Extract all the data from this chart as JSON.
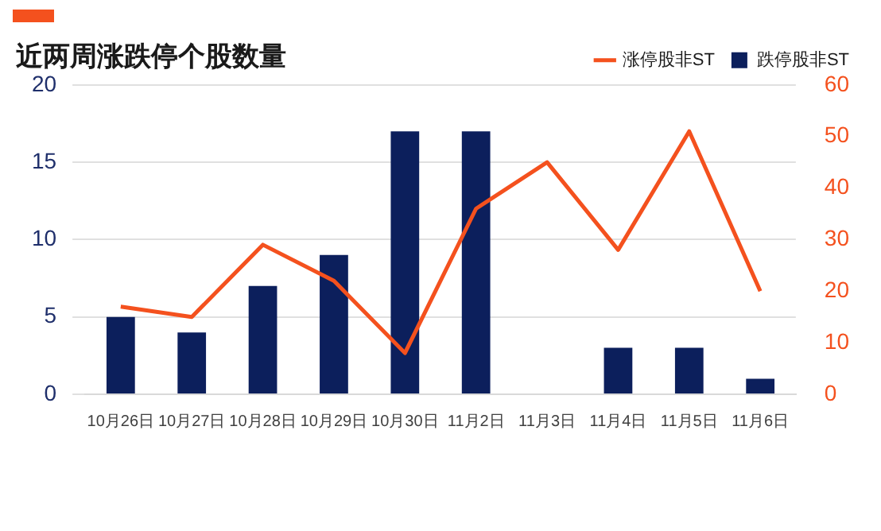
{
  "chart_data": {
    "type": "bar",
    "title": "近两周涨跌停个股数量",
    "categories": [
      "10月26日",
      "10月27日",
      "10月28日",
      "10月29日",
      "10月30日",
      "11月2日",
      "11月3日",
      "11月4日",
      "11月5日",
      "11月6日"
    ],
    "series": [
      {
        "name": "跌停股非ST",
        "color": "#0c1f5c",
        "values": [
          5,
          4,
          7,
          9,
          17,
          17,
          0,
          3,
          3,
          1
        ]
      },
      {
        "name": "涨停股非ST",
        "type": "line",
        "axis": "y2",
        "color": "#f4511e",
        "values": [
          17,
          15,
          29,
          22,
          8,
          36,
          45,
          28,
          51,
          20
        ]
      }
    ],
    "ylim": [
      0,
      20
    ],
    "yticks": [
      0,
      5,
      10,
      15,
      20
    ],
    "y2lim": [
      0,
      60
    ],
    "y2ticks": [
      0,
      10,
      20,
      30,
      40,
      50,
      60
    ],
    "grid": "y",
    "legend": "top right",
    "marker": "none"
  }
}
